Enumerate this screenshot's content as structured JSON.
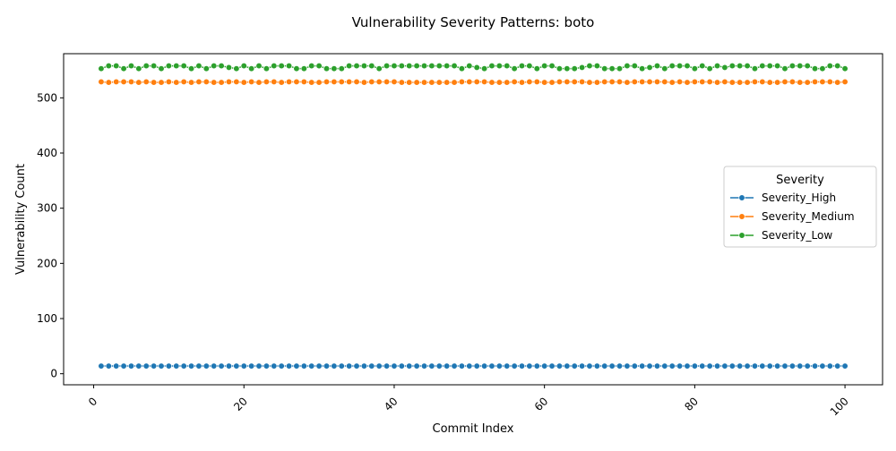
{
  "chart_data": {
    "type": "line",
    "title": "Vulnerability Severity Patterns: boto",
    "xlabel": "Commit Index",
    "ylabel": "Vulnerability Count",
    "xlim": [
      -4,
      105
    ],
    "ylim": [
      -20,
      580
    ],
    "x_ticks": [
      0,
      20,
      40,
      60,
      80,
      100
    ],
    "y_ticks": [
      0,
      100,
      200,
      300,
      400,
      500
    ],
    "grid": false,
    "legend": {
      "title": "Severity",
      "position": "center-right"
    },
    "x": [
      1,
      2,
      3,
      4,
      5,
      6,
      7,
      8,
      9,
      10,
      11,
      12,
      13,
      14,
      15,
      16,
      17,
      18,
      19,
      20,
      21,
      22,
      23,
      24,
      25,
      26,
      27,
      28,
      29,
      30,
      31,
      32,
      33,
      34,
      35,
      36,
      37,
      38,
      39,
      40,
      41,
      42,
      43,
      44,
      45,
      46,
      47,
      48,
      49,
      50,
      51,
      52,
      53,
      54,
      55,
      56,
      57,
      58,
      59,
      60,
      61,
      62,
      63,
      64,
      65,
      66,
      67,
      68,
      69,
      70,
      71,
      72,
      73,
      74,
      75,
      76,
      77,
      78,
      79,
      80,
      81,
      82,
      83,
      84,
      85,
      86,
      87,
      88,
      89,
      90,
      91,
      92,
      93,
      94,
      95,
      96,
      97,
      98,
      99,
      100
    ],
    "series": [
      {
        "name": "Severity_High",
        "color": "#1f77b4",
        "values": [
          14,
          14,
          14,
          14,
          14,
          14,
          14,
          14,
          14,
          14,
          14,
          14,
          14,
          14,
          14,
          14,
          14,
          14,
          14,
          14,
          14,
          14,
          14,
          14,
          14,
          14,
          14,
          14,
          14,
          14,
          14,
          14,
          14,
          14,
          14,
          14,
          14,
          14,
          14,
          14,
          14,
          14,
          14,
          14,
          14,
          14,
          14,
          14,
          14,
          14,
          14,
          14,
          14,
          14,
          14,
          14,
          14,
          14,
          14,
          14,
          14,
          14,
          14,
          14,
          14,
          14,
          14,
          14,
          14,
          14,
          14,
          14,
          14,
          14,
          14,
          14,
          14,
          14,
          14,
          14,
          14,
          14,
          14,
          14,
          14,
          14,
          14,
          14,
          14,
          14,
          14,
          14,
          14,
          14,
          14,
          14,
          14,
          14,
          14,
          14
        ]
      },
      {
        "name": "Severity_Medium",
        "color": "#ff7f0e",
        "values": [
          529,
          528,
          529,
          529,
          529,
          528,
          529,
          528,
          528,
          529,
          528,
          529,
          528,
          529,
          529,
          528,
          528,
          529,
          529,
          528,
          529,
          528,
          529,
          529,
          528,
          529,
          529,
          529,
          528,
          528,
          529,
          529,
          529,
          529,
          529,
          528,
          529,
          529,
          529,
          529,
          528,
          528,
          528,
          528,
          528,
          528,
          528,
          528,
          529,
          529,
          529,
          529,
          528,
          528,
          528,
          529,
          528,
          529,
          529,
          528,
          528,
          529,
          529,
          529,
          529,
          528,
          528,
          529,
          529,
          529,
          528,
          529,
          529,
          529,
          529,
          529,
          528,
          529,
          528,
          529,
          529,
          529,
          528,
          529,
          528,
          528,
          528,
          529,
          529,
          528,
          528,
          529,
          529,
          528,
          528,
          529,
          529,
          529,
          528,
          529
        ]
      },
      {
        "name": "Severity_Low",
        "color": "#2ca02c",
        "values": [
          553,
          558,
          558,
          553,
          558,
          553,
          558,
          558,
          553,
          558,
          558,
          558,
          553,
          558,
          553,
          558,
          558,
          555,
          553,
          558,
          553,
          558,
          553,
          558,
          558,
          558,
          553,
          553,
          558,
          558,
          553,
          553,
          553,
          558,
          558,
          558,
          558,
          553,
          558,
          558,
          558,
          558,
          558,
          558,
          558,
          558,
          558,
          558,
          553,
          558,
          555,
          553,
          558,
          558,
          558,
          553,
          558,
          558,
          553,
          558,
          558,
          553,
          553,
          553,
          555,
          558,
          558,
          553,
          553,
          553,
          558,
          558,
          553,
          555,
          558,
          553,
          558,
          558,
          558,
          553,
          558,
          553,
          558,
          555,
          558,
          558,
          558,
          553,
          558,
          558,
          558,
          553,
          558,
          558,
          558,
          553,
          553,
          558,
          558,
          553
        ]
      }
    ]
  }
}
